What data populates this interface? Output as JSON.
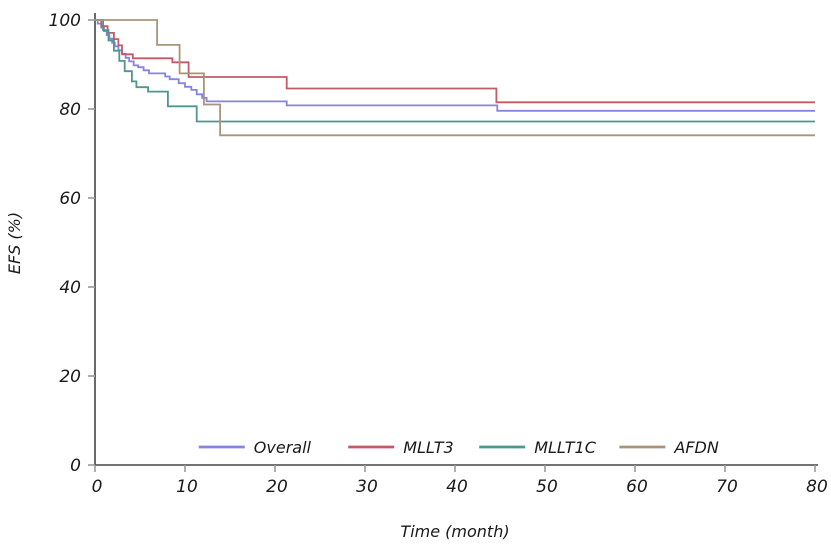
{
  "chart_data": {
    "type": "line",
    "subtype": "kaplan-meier-step",
    "title": "",
    "xlabel": "Time (month)",
    "ylabel": "EFS (%)",
    "xlim": [
      0,
      80
    ],
    "ylim": [
      0,
      100
    ],
    "xticks": [
      0,
      10,
      20,
      30,
      40,
      50,
      60,
      70,
      80
    ],
    "yticks": [
      0,
      20,
      40,
      60,
      80,
      100
    ],
    "grid": false,
    "legend_position": "bottom-inside",
    "series": [
      {
        "name": "Overall",
        "color": "#8585e0",
        "points": [
          [
            0,
            100
          ],
          [
            0.3,
            99.2
          ],
          [
            0.7,
            98.3
          ],
          [
            1,
            97.5
          ],
          [
            1.3,
            96.6
          ],
          [
            1.6,
            95.8
          ],
          [
            1.9,
            94.9
          ],
          [
            2.2,
            94.1
          ],
          [
            2.6,
            93.2
          ],
          [
            3,
            92.4
          ],
          [
            3.4,
            91.5
          ],
          [
            3.8,
            90.7
          ],
          [
            4.3,
            89.8
          ],
          [
            4.8,
            89.4
          ],
          [
            5.4,
            88.7
          ],
          [
            6,
            88
          ],
          [
            7.8,
            87.3
          ],
          [
            8.3,
            86.7
          ],
          [
            9.3,
            85.8
          ],
          [
            10,
            85
          ],
          [
            10.7,
            84.3
          ],
          [
            11.3,
            83.3
          ],
          [
            11.9,
            82.5
          ],
          [
            12.4,
            81.7
          ],
          [
            21.3,
            80.8
          ],
          [
            44.7,
            79.6
          ],
          [
            80,
            79.6
          ]
        ]
      },
      {
        "name": "MLLT3",
        "color": "#c25b66",
        "points": [
          [
            0,
            100
          ],
          [
            0.7,
            98.6
          ],
          [
            1.4,
            97.1
          ],
          [
            2.1,
            95.7
          ],
          [
            2.6,
            94.3
          ],
          [
            3,
            92.3
          ],
          [
            4.2,
            91.4
          ],
          [
            8.6,
            90.5
          ],
          [
            10.4,
            87.2
          ],
          [
            21.3,
            84.6
          ],
          [
            44.6,
            81.5
          ],
          [
            80,
            81.5
          ]
        ]
      },
      {
        "name": "MLLT1C",
        "color": "#4f968c",
        "points": [
          [
            0,
            100
          ],
          [
            0.9,
            97.7
          ],
          [
            1.5,
            95.4
          ],
          [
            2.1,
            93.1
          ],
          [
            2.7,
            90.8
          ],
          [
            3.3,
            88.5
          ],
          [
            4.1,
            86.2
          ],
          [
            4.6,
            84.9
          ],
          [
            5.9,
            83.9
          ],
          [
            8.1,
            80.6
          ],
          [
            11.3,
            77.2
          ],
          [
            80,
            77.2
          ]
        ]
      },
      {
        "name": "AFDN",
        "color": "#a9947a",
        "points": [
          [
            0,
            100
          ],
          [
            6.9,
            94.4
          ],
          [
            9.4,
            88
          ],
          [
            12.1,
            81
          ],
          [
            13.9,
            74.1
          ],
          [
            80,
            74.1
          ]
        ]
      }
    ]
  },
  "axis_style": {
    "line_color": "#454545",
    "tick_color": "#9a9a9a",
    "text_color": "#1a1a1a"
  }
}
